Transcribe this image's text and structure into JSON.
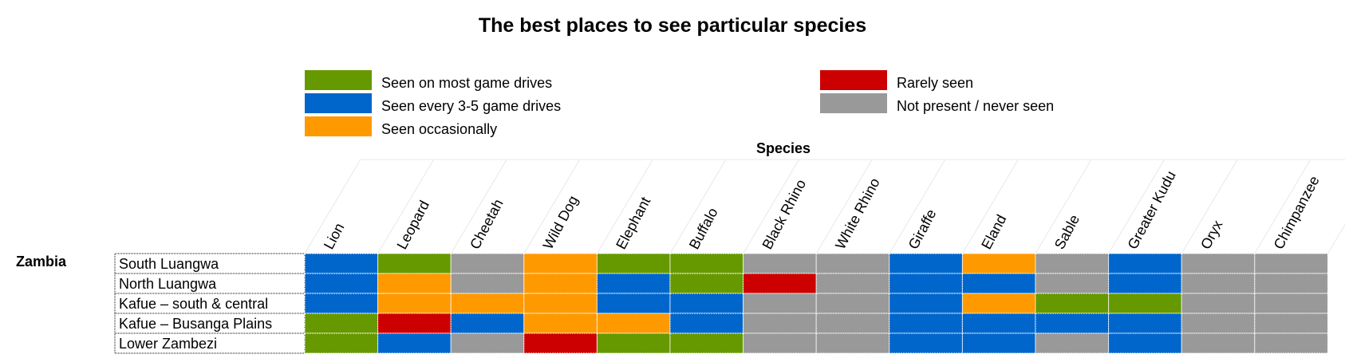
{
  "chart_data": {
    "type": "heatmap",
    "title": "The best places to see particular species",
    "column_header": "Species",
    "group_label": "Zambia",
    "columns": [
      "Lion",
      "Leopard",
      "Cheetah",
      "Wild Dog",
      "Elephant",
      "Buffalo",
      "Black Rhino",
      "White Rhino",
      "Giraffe",
      "Eland",
      "Sable",
      "Greater Kudu",
      "Oryx",
      "Chimpanzee"
    ],
    "rows": [
      "South Luangwa",
      "North Luangwa",
      "Kafue – south & central",
      "Kafue – Busanga Plains",
      "Lower Zambezi"
    ],
    "legend": [
      {
        "key": "most",
        "label": "Seen on most game drives",
        "color": "#669900"
      },
      {
        "key": "every",
        "label": "Seen every 3-5 game drives",
        "color": "#0066CC"
      },
      {
        "key": "occ",
        "label": "Seen occasionally",
        "color": "#FF9900"
      },
      {
        "key": "rare",
        "label": "Rarely seen",
        "color": "#CC0000"
      },
      {
        "key": "none",
        "label": "Not present / never seen",
        "color": "#999999"
      }
    ],
    "values": [
      [
        "every",
        "most",
        "none",
        "occ",
        "most",
        "most",
        "none",
        "none",
        "every",
        "occ",
        "none",
        "every",
        "none",
        "none"
      ],
      [
        "every",
        "occ",
        "none",
        "occ",
        "every",
        "most",
        "rare",
        "none",
        "every",
        "every",
        "none",
        "every",
        "none",
        "none"
      ],
      [
        "every",
        "occ",
        "occ",
        "occ",
        "every",
        "every",
        "none",
        "none",
        "every",
        "occ",
        "most",
        "most",
        "none",
        "none"
      ],
      [
        "most",
        "rare",
        "every",
        "occ",
        "occ",
        "every",
        "none",
        "none",
        "every",
        "every",
        "every",
        "every",
        "none",
        "none"
      ],
      [
        "most",
        "every",
        "none",
        "rare",
        "most",
        "most",
        "none",
        "none",
        "every",
        "every",
        "none",
        "every",
        "none",
        "none"
      ]
    ]
  }
}
